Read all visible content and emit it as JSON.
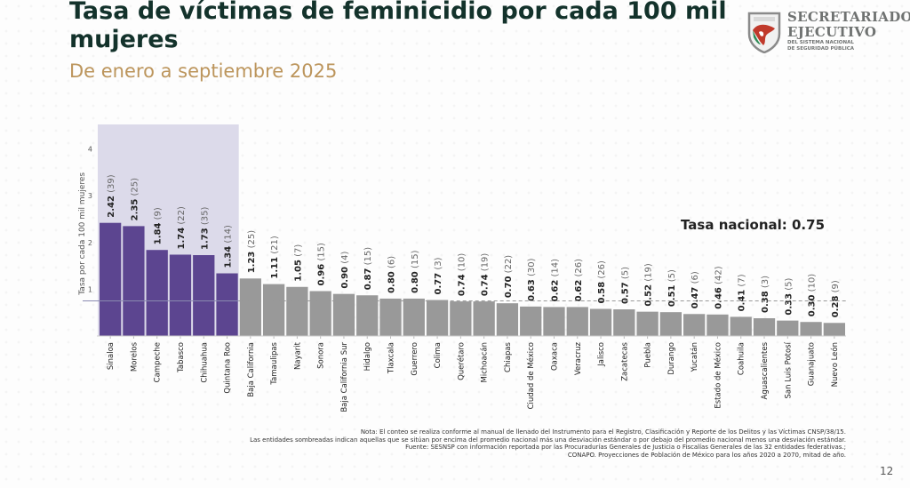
{
  "header": {
    "title": "Tasa de víctimas de feminicidio por cada 100 mil mujeres",
    "subtitle": "De enero a septiembre 2025"
  },
  "logo": {
    "line1": "SECRETARIADO",
    "line2": "EJECUTIVO",
    "line3": "DEL SISTEMA NACIONAL",
    "line4": "DE SEGURIDAD PÚBLICA"
  },
  "chart_data": {
    "type": "bar",
    "title": "Tasa de víctimas de feminicidio por cada 100 mil mujeres",
    "xlabel": "",
    "ylabel": "Tasa por cada 100 mil mujeres",
    "ylim": [
      0,
      4.6
    ],
    "yticks": [
      1,
      2,
      3,
      4
    ],
    "grid": false,
    "categories": [
      "Sinaloa",
      "Morelos",
      "Campeche",
      "Tabasco",
      "Chihuahua",
      "Quintana Roo",
      "Baja California",
      "Tamaulipas",
      "Nayarit",
      "Sonora",
      "Baja California Sur",
      "Hidalgo",
      "Tlaxcala",
      "Guerrero",
      "Colima",
      "Querétaro",
      "Michoacán",
      "Chiapas",
      "Ciudad de México",
      "Oaxaca",
      "Veracruz",
      "Jalisco",
      "Zacatecas",
      "Puebla",
      "Durango",
      "Yucatán",
      "Estado de México",
      "Coahuila",
      "Aguascalientes",
      "San Luis Potosí",
      "Guanajuato",
      "Nuevo León"
    ],
    "values": [
      2.42,
      2.35,
      1.84,
      1.74,
      1.73,
      1.34,
      1.23,
      1.11,
      1.05,
      0.96,
      0.9,
      0.87,
      0.8,
      0.8,
      0.77,
      0.74,
      0.74,
      0.7,
      0.63,
      0.62,
      0.62,
      0.58,
      0.57,
      0.52,
      0.51,
      0.47,
      0.46,
      0.41,
      0.38,
      0.33,
      0.3,
      0.28
    ],
    "counts": [
      39,
      25,
      9,
      22,
      35,
      14,
      25,
      21,
      7,
      15,
      4,
      15,
      6,
      15,
      3,
      10,
      19,
      22,
      30,
      14,
      26,
      26,
      5,
      19,
      5,
      6,
      42,
      7,
      3,
      5,
      10,
      9
    ],
    "highlighted": [
      true,
      true,
      true,
      true,
      true,
      true,
      false,
      false,
      false,
      false,
      false,
      false,
      false,
      false,
      false,
      false,
      false,
      false,
      false,
      false,
      false,
      false,
      false,
      false,
      false,
      false,
      false,
      false,
      false,
      false,
      false,
      false
    ],
    "national_rate": 0.75,
    "national_rate_label": "Tasa nacional: 0.75",
    "colors": {
      "highlight_bar": "#5c4590",
      "normal_bar": "#999999",
      "highlight_band": "#dcdaea",
      "reference_line": "#999999"
    }
  },
  "notes": [
    "Nota: El conteo se realiza conforme al manual de llenado del Instrumento para el Registro, Clasificación y Reporte de los Delitos y las Víctimas CNSP/38/15.",
    "Las entidades sombreadas indican aquellas que se sitúan por encima del promedio nacional más una desviación estándar o por debajo del promedio nacional menos una desviación estándar.",
    "Fuente: SESNSP con información reportada por las Procuradurías Generales de Justicia o Fiscalías Generales de las 32 entidades federativas.;",
    "CONAPO. Proyecciones de Población de México para los años 2020 a 2070, mitad de año."
  ],
  "page_number": "12"
}
